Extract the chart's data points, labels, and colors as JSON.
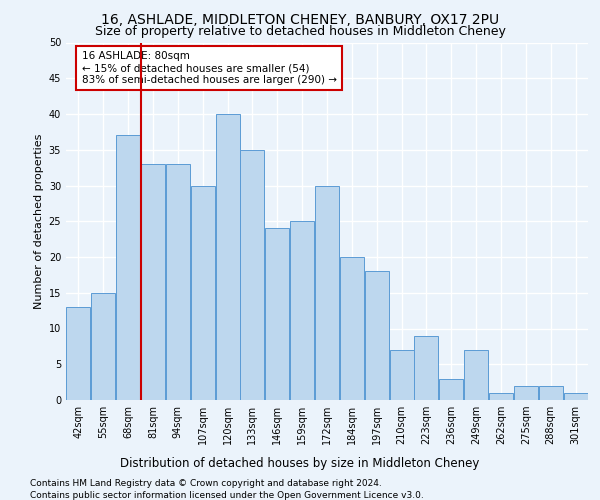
{
  "title": "16, ASHLADE, MIDDLETON CHENEY, BANBURY, OX17 2PU",
  "subtitle": "Size of property relative to detached houses in Middleton Cheney",
  "xlabel": "Distribution of detached houses by size in Middleton Cheney",
  "ylabel": "Number of detached properties",
  "footnote1": "Contains HM Land Registry data © Crown copyright and database right 2024.",
  "footnote2": "Contains public sector information licensed under the Open Government Licence v3.0.",
  "categories": [
    "42sqm",
    "55sqm",
    "68sqm",
    "81sqm",
    "94sqm",
    "107sqm",
    "120sqm",
    "133sqm",
    "146sqm",
    "159sqm",
    "172sqm",
    "184sqm",
    "197sqm",
    "210sqm",
    "223sqm",
    "236sqm",
    "249sqm",
    "262sqm",
    "275sqm",
    "288sqm",
    "301sqm"
  ],
  "values": [
    13,
    15,
    37,
    33,
    33,
    30,
    40,
    35,
    24,
    25,
    30,
    20,
    18,
    7,
    9,
    3,
    7,
    1,
    2,
    2,
    1
  ],
  "bar_color": "#BDD7EE",
  "bar_edge_color": "#5B9BD5",
  "vline_color": "#CC0000",
  "annotation_box_text": "16 ASHLADE: 80sqm\n← 15% of detached houses are smaller (54)\n83% of semi-detached houses are larger (290) →",
  "ylim": [
    0,
    50
  ],
  "yticks": [
    0,
    5,
    10,
    15,
    20,
    25,
    30,
    35,
    40,
    45,
    50
  ],
  "bg_color": "#EBF3FB",
  "grid_color": "#FFFFFF",
  "title_fontsize": 10,
  "subtitle_fontsize": 9,
  "ylabel_fontsize": 8,
  "xlabel_fontsize": 8.5,
  "tick_fontsize": 7,
  "annotation_fontsize": 7.5,
  "footnote_fontsize": 6.5
}
